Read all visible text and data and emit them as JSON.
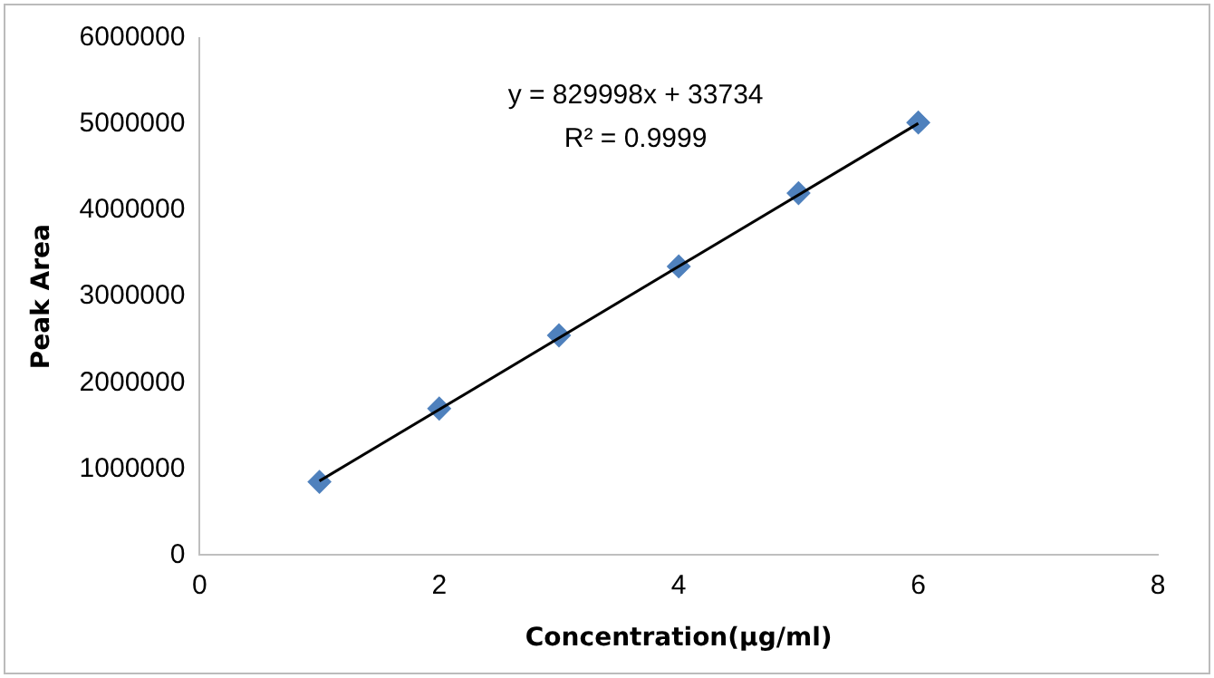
{
  "chart_data": {
    "type": "scatter",
    "xlabel": "Concentration(µg/ml)",
    "ylabel": "Peak Area",
    "xlim": [
      0,
      8
    ],
    "xticks": [
      0,
      2,
      4,
      6,
      8
    ],
    "ylim": [
      0,
      6000000
    ],
    "yticks": [
      0,
      1000000,
      2000000,
      3000000,
      4000000,
      5000000,
      6000000
    ],
    "grid": false,
    "legend": false,
    "marker": "diamond",
    "annotations": [
      "y = 829998x + 33734",
      "R² = 0.9999"
    ],
    "series": [
      {
        "type": "scatter",
        "color": "#4f81bd",
        "x": [
          1,
          2,
          3,
          4,
          5,
          6
        ],
        "values": [
          850000,
          1700000,
          2550000,
          3350000,
          4200000,
          5020000
        ]
      },
      {
        "type": "line",
        "color": "#000000",
        "x": [
          1,
          6
        ],
        "values": [
          860000,
          5010000
        ],
        "line_style": "solid",
        "marker": "none"
      }
    ]
  }
}
